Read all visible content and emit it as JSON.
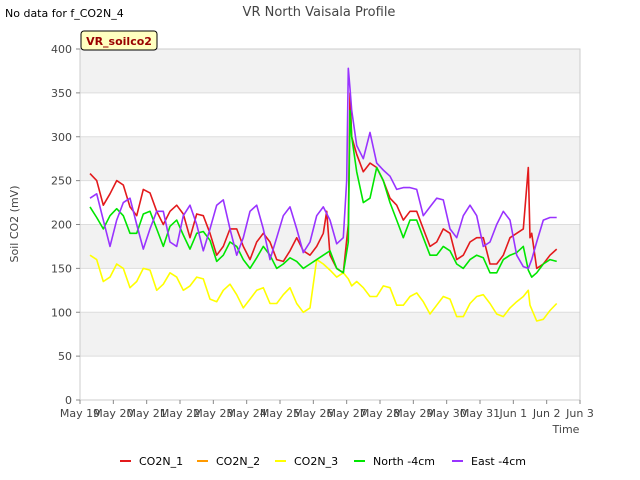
{
  "no_data_note": "No data for f_CO2N_4",
  "chart_data": {
    "type": "line",
    "title": "VR North Vaisala Profile",
    "xlabel": "Time",
    "ylabel": "Soil CO2 (mV)",
    "badge": "VR_soilco2",
    "ylim": [
      0,
      400
    ],
    "yticks": [
      0,
      50,
      100,
      150,
      200,
      250,
      300,
      350,
      400
    ],
    "xlim": [
      0,
      15
    ],
    "xticks": [
      {
        "v": 0,
        "label": "May 19"
      },
      {
        "v": 1,
        "label": "May 20"
      },
      {
        "v": 2,
        "label": "May 21"
      },
      {
        "v": 3,
        "label": "May 22"
      },
      {
        "v": 4,
        "label": "May 23"
      },
      {
        "v": 5,
        "label": "May 24"
      },
      {
        "v": 6,
        "label": "May 25"
      },
      {
        "v": 7,
        "label": "May 26"
      },
      {
        "v": 8,
        "label": "May 27"
      },
      {
        "v": 9,
        "label": "May 28"
      },
      {
        "v": 10,
        "label": "May 29"
      },
      {
        "v": 11,
        "label": "May 30"
      },
      {
        "v": 12,
        "label": "May 31"
      },
      {
        "v": 13,
        "label": "Jun 1"
      },
      {
        "v": 14,
        "label": "Jun 2"
      },
      {
        "v": 15,
        "label": "Jun 3"
      }
    ],
    "grid": true,
    "legend_position": "bottom",
    "series": [
      {
        "name": "CO2N_1",
        "color": "#e31a1c",
        "x": [
          0.3,
          0.5,
          0.7,
          0.9,
          1.1,
          1.3,
          1.5,
          1.7,
          1.9,
          2.1,
          2.3,
          2.5,
          2.7,
          2.9,
          3.1,
          3.3,
          3.5,
          3.7,
          3.9,
          4.1,
          4.3,
          4.5,
          4.7,
          4.9,
          5.1,
          5.3,
          5.5,
          5.7,
          5.9,
          6.1,
          6.3,
          6.5,
          6.7,
          6.9,
          7.1,
          7.3,
          7.4,
          7.5,
          7.7,
          7.9,
          8.05,
          8.1,
          8.15,
          8.3,
          8.5,
          8.7,
          8.9,
          9.1,
          9.3,
          9.5,
          9.7,
          9.9,
          10.1,
          10.3,
          10.5,
          10.7,
          10.9,
          11.1,
          11.3,
          11.5,
          11.7,
          11.9,
          12.1,
          12.3,
          12.5,
          12.7,
          12.9,
          13.1,
          13.3,
          13.45,
          13.5,
          13.55,
          13.7,
          13.9,
          14.1,
          14.3
        ],
        "y": [
          258,
          250,
          222,
          235,
          250,
          245,
          220,
          210,
          240,
          236,
          215,
          200,
          215,
          222,
          212,
          185,
          212,
          210,
          190,
          165,
          175,
          195,
          195,
          175,
          160,
          180,
          190,
          180,
          160,
          158,
          170,
          185,
          170,
          165,
          175,
          190,
          215,
          165,
          150,
          145,
          200,
          350,
          300,
          280,
          260,
          270,
          265,
          250,
          230,
          222,
          205,
          215,
          215,
          195,
          175,
          180,
          195,
          190,
          160,
          165,
          180,
          185,
          185,
          155,
          155,
          165,
          185,
          190,
          195,
          265,
          185,
          190,
          150,
          155,
          165,
          172
        ]
      },
      {
        "name": "CO2N_2",
        "color": "#ff9900",
        "x": [],
        "y": []
      },
      {
        "name": "CO2N_3",
        "color": "#ffff00",
        "x": [
          0.3,
          0.5,
          0.7,
          0.9,
          1.1,
          1.3,
          1.5,
          1.7,
          1.9,
          2.1,
          2.3,
          2.5,
          2.7,
          2.9,
          3.1,
          3.3,
          3.5,
          3.7,
          3.9,
          4.1,
          4.3,
          4.5,
          4.7,
          4.9,
          5.1,
          5.3,
          5.5,
          5.7,
          5.9,
          6.1,
          6.3,
          6.5,
          6.7,
          6.9,
          7.1,
          7.3,
          7.5,
          7.7,
          7.9,
          8.05,
          8.15,
          8.3,
          8.5,
          8.7,
          8.9,
          9.1,
          9.3,
          9.5,
          9.7,
          9.9,
          10.1,
          10.3,
          10.5,
          10.7,
          10.9,
          11.1,
          11.3,
          11.5,
          11.7,
          11.9,
          12.1,
          12.3,
          12.5,
          12.7,
          12.9,
          13.1,
          13.3,
          13.45,
          13.5,
          13.7,
          13.9,
          14.1,
          14.3
        ],
        "y": [
          165,
          160,
          135,
          140,
          155,
          150,
          128,
          135,
          150,
          148,
          125,
          132,
          145,
          140,
          125,
          130,
          140,
          138,
          115,
          112,
          125,
          132,
          120,
          105,
          115,
          125,
          128,
          110,
          110,
          120,
          128,
          110,
          100,
          105,
          160,
          155,
          148,
          140,
          145,
          138,
          130,
          135,
          128,
          118,
          118,
          130,
          128,
          108,
          108,
          118,
          122,
          112,
          98,
          108,
          118,
          115,
          95,
          95,
          110,
          118,
          120,
          110,
          98,
          95,
          105,
          112,
          118,
          125,
          108,
          90,
          92,
          102,
          110
        ]
      },
      {
        "name": "North -4cm",
        "color": "#00e600",
        "x": [
          0.3,
          0.5,
          0.7,
          0.9,
          1.1,
          1.3,
          1.5,
          1.7,
          1.9,
          2.1,
          2.3,
          2.5,
          2.7,
          2.9,
          3.1,
          3.3,
          3.5,
          3.7,
          3.9,
          4.1,
          4.3,
          4.5,
          4.7,
          4.9,
          5.1,
          5.3,
          5.5,
          5.7,
          5.9,
          6.1,
          6.3,
          6.5,
          6.7,
          6.9,
          7.1,
          7.3,
          7.5,
          7.7,
          7.9,
          8.05,
          8.1,
          8.15,
          8.3,
          8.5,
          8.7,
          8.9,
          9.1,
          9.3,
          9.5,
          9.7,
          9.9,
          10.1,
          10.3,
          10.5,
          10.7,
          10.9,
          11.1,
          11.3,
          11.5,
          11.7,
          11.9,
          12.1,
          12.3,
          12.5,
          12.7,
          12.9,
          13.1,
          13.3,
          13.45,
          13.55,
          13.7,
          13.9,
          14.1,
          14.3
        ],
        "y": [
          220,
          208,
          195,
          210,
          218,
          210,
          190,
          190,
          212,
          215,
          195,
          175,
          198,
          205,
          188,
          172,
          190,
          192,
          182,
          158,
          165,
          180,
          175,
          160,
          150,
          162,
          175,
          165,
          150,
          155,
          162,
          158,
          150,
          155,
          160,
          165,
          170,
          150,
          145,
          180,
          330,
          300,
          260,
          225,
          230,
          265,
          250,
          225,
          205,
          185,
          205,
          205,
          185,
          165,
          165,
          175,
          170,
          155,
          150,
          160,
          165,
          162,
          145,
          145,
          160,
          165,
          168,
          175,
          148,
          140,
          145,
          155,
          160,
          158
        ]
      },
      {
        "name": "East -4cm",
        "color": "#9933ff",
        "x": [
          0.3,
          0.5,
          0.7,
          0.9,
          1.1,
          1.3,
          1.5,
          1.7,
          1.9,
          2.1,
          2.3,
          2.5,
          2.7,
          2.9,
          3.1,
          3.3,
          3.5,
          3.7,
          3.9,
          4.1,
          4.3,
          4.5,
          4.7,
          4.9,
          5.1,
          5.3,
          5.5,
          5.7,
          5.9,
          6.1,
          6.3,
          6.5,
          6.7,
          6.9,
          7.1,
          7.3,
          7.5,
          7.7,
          7.9,
          8.0,
          8.05,
          8.1,
          8.15,
          8.3,
          8.5,
          8.7,
          8.9,
          9.1,
          9.3,
          9.5,
          9.7,
          9.9,
          10.1,
          10.3,
          10.5,
          10.7,
          10.9,
          11.1,
          11.3,
          11.5,
          11.7,
          11.9,
          12.1,
          12.3,
          12.5,
          12.7,
          12.9,
          13.1,
          13.3,
          13.45,
          13.55,
          13.7,
          13.9,
          14.1,
          14.3
        ],
        "y": [
          230,
          235,
          205,
          175,
          205,
          225,
          230,
          200,
          172,
          195,
          215,
          215,
          180,
          175,
          210,
          222,
          200,
          170,
          195,
          222,
          228,
          195,
          165,
          185,
          215,
          222,
          195,
          160,
          185,
          210,
          220,
          195,
          168,
          180,
          210,
          220,
          205,
          178,
          185,
          250,
          378,
          355,
          330,
          290,
          275,
          305,
          270,
          262,
          255,
          240,
          242,
          242,
          240,
          210,
          220,
          230,
          228,
          195,
          185,
          210,
          222,
          210,
          175,
          180,
          200,
          215,
          205,
          165,
          152,
          150,
          160,
          180,
          205,
          208,
          208
        ]
      }
    ]
  }
}
